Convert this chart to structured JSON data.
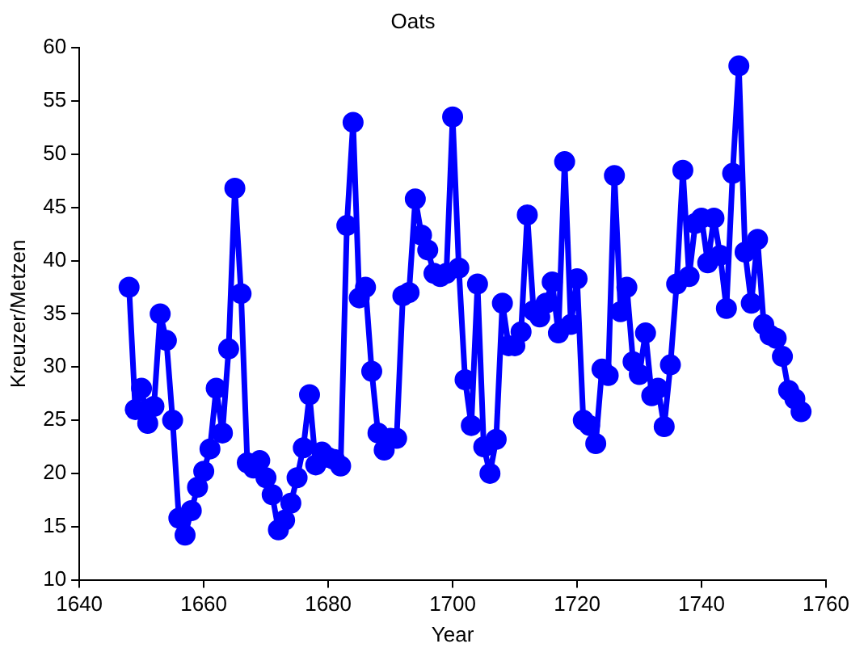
{
  "chart_data": {
    "type": "line",
    "title": "Oats",
    "xlabel": "Year",
    "ylabel": "Kreuzer/Metzen",
    "x": [
      1648,
      1649,
      1650,
      1651,
      1652,
      1653,
      1654,
      1655,
      1656,
      1657,
      1658,
      1659,
      1660,
      1661,
      1662,
      1663,
      1664,
      1665,
      1666,
      1667,
      1668,
      1669,
      1670,
      1671,
      1672,
      1673,
      1674,
      1675,
      1676,
      1677,
      1678,
      1679,
      1680,
      1681,
      1682,
      1683,
      1684,
      1685,
      1686,
      1687,
      1688,
      1689,
      1690,
      1691,
      1692,
      1693,
      1694,
      1695,
      1696,
      1697,
      1698,
      1699,
      1700,
      1701,
      1702,
      1703,
      1704,
      1705,
      1706,
      1707,
      1708,
      1709,
      1710,
      1711,
      1712,
      1713,
      1714,
      1715,
      1716,
      1717,
      1718,
      1719,
      1720,
      1721,
      1722,
      1723,
      1724,
      1725,
      1726,
      1727,
      1728,
      1729,
      1730,
      1731,
      1732,
      1733,
      1734,
      1735,
      1736,
      1737,
      1738,
      1739,
      1740,
      1741,
      1742,
      1743,
      1744,
      1745,
      1746,
      1747,
      1748,
      1749,
      1750,
      1751,
      1752,
      1753,
      1754,
      1755,
      1756
    ],
    "series": [
      {
        "color": "#0000ff",
        "values": [
          37.5,
          26,
          28,
          24.7,
          26.3,
          35,
          32.5,
          25,
          15.8,
          14.2,
          16.5,
          18.7,
          20.2,
          22.3,
          28,
          23.8,
          31.7,
          46.8,
          36.9,
          21,
          20.5,
          21.2,
          19.6,
          18,
          14.7,
          15.6,
          17.2,
          19.6,
          22.4,
          27.4,
          20.8,
          22,
          21.5,
          21.3,
          20.7,
          43.3,
          53,
          36.5,
          37.5,
          29.6,
          23.8,
          22.2,
          23.3,
          23.3,
          36.7,
          37,
          45.8,
          42.4,
          41,
          38.8,
          38.5,
          38.8,
          53.5,
          39.3,
          28.8,
          24.5,
          37.8,
          22.5,
          20,
          23.2,
          36,
          32,
          32,
          33.3,
          44.3,
          35.3,
          34.7,
          36,
          38,
          33.2,
          49.3,
          34,
          38.3,
          25,
          24.5,
          22.8,
          29.8,
          29.2,
          48,
          35.2,
          37.5,
          30.5,
          29.3,
          33.2,
          27.3,
          28,
          24.4,
          30.2,
          37.8,
          48.5,
          38.5,
          43.5,
          44,
          39.8,
          44,
          40.5,
          35.5,
          48.2,
          58.3,
          40.8,
          36,
          42,
          34,
          33,
          32.7,
          31,
          27.8,
          27,
          25.8
        ]
      }
    ],
    "xlim": [
      1640,
      1760
    ],
    "xticks": [
      1640,
      1660,
      1680,
      1700,
      1720,
      1740,
      1760
    ],
    "ylim": [
      10,
      60
    ],
    "yticks": [
      10,
      15,
      20,
      25,
      30,
      35,
      40,
      45,
      50,
      55,
      60
    ],
    "grid": false,
    "legend": false,
    "marker": "circle",
    "line_style": "solid"
  }
}
